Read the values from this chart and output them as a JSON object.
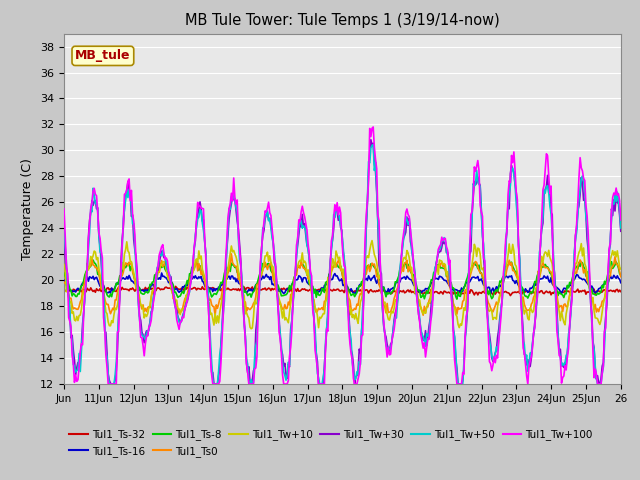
{
  "title": "MB Tule Tower: Tule Temps 1 (3/19/14-now)",
  "ylabel": "Temperature (C)",
  "ylim": [
    12,
    39
  ],
  "yticks": [
    12,
    14,
    16,
    18,
    20,
    22,
    24,
    26,
    28,
    30,
    32,
    34,
    36,
    38
  ],
  "xlabel_ticks": [
    "Jun",
    "11Jun",
    "12Jun",
    "13Jun",
    "14Jun",
    "15Jun",
    "16Jun",
    "17Jun",
    "18Jun",
    "19Jun",
    "20Jun",
    "21Jun",
    "22Jun",
    "23Jun",
    "24Jun",
    "25Jun",
    "26"
  ],
  "fig_bg": "#c8c8c8",
  "plot_bg": "#e8e8e8",
  "series": [
    {
      "label": "Tul1_Ts-32",
      "color": "#cc0000",
      "lw": 1.2
    },
    {
      "label": "Tul1_Ts-16",
      "color": "#0000cc",
      "lw": 1.2
    },
    {
      "label": "Tul1_Ts-8",
      "color": "#00cc00",
      "lw": 1.2
    },
    {
      "label": "Tul1_Ts0",
      "color": "#ff8800",
      "lw": 1.2
    },
    {
      "label": "Tul1_Tw+10",
      "color": "#cccc00",
      "lw": 1.2
    },
    {
      "label": "Tul1_Tw+30",
      "color": "#8800cc",
      "lw": 1.2
    },
    {
      "label": "Tul1_Tw+50",
      "color": "#00cccc",
      "lw": 1.2
    },
    {
      "label": "Tul1_Tw+100",
      "color": "#ff00ff",
      "lw": 1.2
    }
  ],
  "annotation_text": "MB_tule",
  "annotation_color": "#aa0000",
  "annotation_bg": "#ffffcc",
  "annotation_border": "#aa8800",
  "legend_ncol_row1": 6,
  "legend_ncol_row2": 2
}
